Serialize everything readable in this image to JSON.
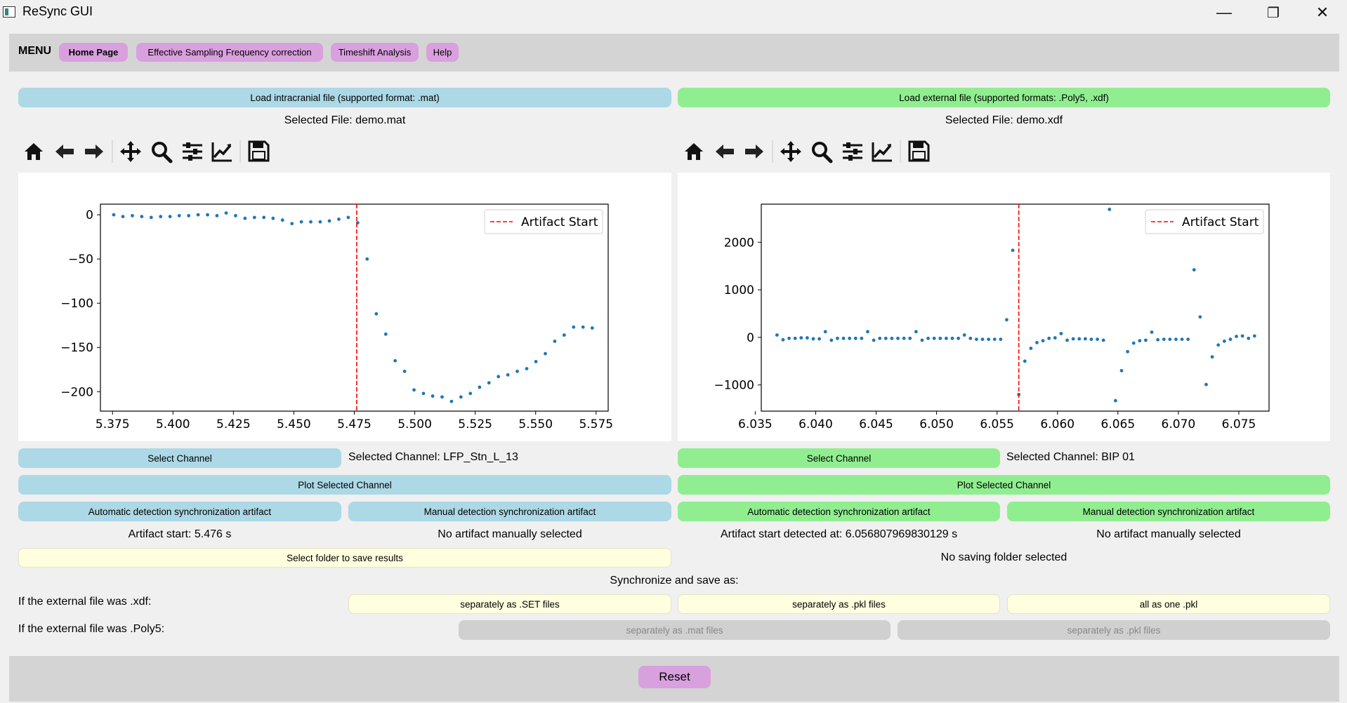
{
  "window": {
    "title": "ReSync GUI",
    "minimize_icon": "—",
    "maximize_icon": "❐",
    "close_icon": "✕"
  },
  "menu": {
    "label": "MENU",
    "items": [
      {
        "label": "Home Page",
        "active": true
      },
      {
        "label": "Effective Sampling Frequency correction"
      },
      {
        "label": "Timeshift Analysis"
      },
      {
        "label": "Help"
      }
    ],
    "accent_color": "#d9a0de"
  },
  "left": {
    "load_button": "Load intracranial file (supported format: .mat)",
    "selected_file": "Selected File: demo.mat",
    "select_channel_button": "Select Channel",
    "selected_channel": "Selected Channel: LFP_Stn_L_13",
    "plot_button": "Plot Selected Channel",
    "auto_button": "Automatic detection synchronization artifact",
    "manual_button": "Manual detection synchronization artifact",
    "artifact_status": "Artifact start: 5.476 s",
    "manual_status": "No artifact manually selected",
    "color": "#add8e6"
  },
  "right": {
    "load_button": "Load external file (supported formats: .Poly5, .xdf)",
    "selected_file": "Selected File: demo.xdf",
    "select_channel_button": "Select Channel",
    "selected_channel": "Selected Channel: BIP 01",
    "plot_button": "Plot Selected Channel",
    "auto_button": "Automatic detection synchronization artifact",
    "manual_button": "Manual detection synchronization artifact",
    "artifact_status": "Artifact start detected at: 6.056807969830129 s",
    "manual_status": "No artifact manually selected",
    "color": "#90ee90"
  },
  "toolbar_icons": [
    "home-icon",
    "back-arrow-icon",
    "forward-arrow-icon",
    "pan-icon",
    "zoom-icon",
    "configure-subplots-icon",
    "edit-axis-icon",
    "save-icon"
  ],
  "save": {
    "folder_button": "Select folder to save results",
    "folder_status": "No saving folder selected",
    "heading": "Synchronize and save as:",
    "xdf_label": "If the external file was .xdf:",
    "xdf_buttons": [
      "separately as .SET files",
      "separately as .pkl files",
      "all as one .pkl"
    ],
    "poly5_label": "If the external file was .Poly5:",
    "poly5_buttons": [
      "separately as .mat files",
      "separately as .pkl files"
    ]
  },
  "reset_button": "Reset",
  "chart_data": [
    {
      "type": "scatter",
      "title": "",
      "xlabel": "",
      "ylabel": "",
      "xlim": [
        5.37,
        5.58
      ],
      "ylim": [
        -222,
        12
      ],
      "xticks": [
        5.375,
        5.4,
        5.425,
        5.45,
        5.475,
        5.5,
        5.525,
        5.55,
        5.575
      ],
      "xtick_labels": [
        "5.375",
        "5.400",
        "5.425",
        "5.450",
        "5.475",
        "5.500",
        "5.525",
        "5.550",
        "5.575"
      ],
      "yticks": [
        0,
        -50,
        -100,
        -150,
        -200
      ],
      "ytick_labels": [
        "0",
        "−50",
        "−100",
        "−150",
        "−200"
      ],
      "series": [
        {
          "color": "#1f77b4",
          "x": [
            5.3755,
            5.3793,
            5.3832,
            5.3871,
            5.391,
            5.3949,
            5.3988,
            5.4026,
            5.4065,
            5.4104,
            5.4143,
            5.4182,
            5.422,
            5.4259,
            5.4298,
            5.4337,
            5.4376,
            5.4414,
            5.4453,
            5.4492,
            5.4531,
            5.457,
            5.4609,
            5.4647,
            5.4686,
            5.4725,
            5.4764,
            5.4803,
            5.4841,
            5.488,
            5.4919,
            5.4958,
            5.4997,
            5.5036,
            5.5074,
            5.5113,
            5.5152,
            5.5191,
            5.523,
            5.5268,
            5.5307,
            5.5346,
            5.5385,
            5.5424,
            5.5463,
            5.5501,
            5.554,
            5.5579,
            5.5618,
            5.5657,
            5.5696,
            5.5734
          ],
          "y": [
            0,
            -2,
            -1,
            -2,
            -3,
            -2,
            -2,
            -1,
            -1,
            0,
            0,
            -1,
            2,
            -1,
            -4,
            -3,
            -3,
            -4,
            -6,
            -10,
            -8,
            -8,
            -8,
            -7,
            -5,
            -3,
            -9,
            -50,
            -112,
            -135,
            -165,
            -177,
            -198,
            -202,
            -205,
            -206,
            -211,
            -206,
            -202,
            -195,
            -190,
            -183,
            -181,
            -177,
            -174,
            -166,
            -157,
            -143,
            -136,
            -127,
            -127,
            -128
          ]
        }
      ],
      "vline": {
        "x": 5.476,
        "color": "#ff0000",
        "style": "dashed"
      },
      "legend": {
        "entries": [
          "Artifact Start"
        ],
        "position": "top-right"
      }
    },
    {
      "type": "scatter",
      "title": "",
      "xlabel": "",
      "ylabel": "",
      "xlim": [
        6.0355,
        6.0775
      ],
      "ylim": [
        -1550,
        2800
      ],
      "xticks": [
        6.035,
        6.04,
        6.045,
        6.05,
        6.055,
        6.06,
        6.065,
        6.07,
        6.075
      ],
      "xtick_labels": [
        "6.035",
        "6.040",
        "6.045",
        "6.050",
        "6.055",
        "6.060",
        "6.065",
        "6.070",
        "6.075"
      ],
      "yticks": [
        2000,
        1000,
        0,
        -1000
      ],
      "ytick_labels": [
        "2000",
        "1000",
        "0",
        "−1000"
      ],
      "series": [
        {
          "color": "#1f77b4",
          "x": [
            6.0368,
            6.0373,
            6.0378,
            6.0383,
            6.0388,
            6.0393,
            6.0398,
            6.0403,
            6.0408,
            6.0413,
            6.0418,
            6.0423,
            6.0428,
            6.0433,
            6.0438,
            6.0443,
            6.0448,
            6.0453,
            6.0458,
            6.0463,
            6.0468,
            6.0473,
            6.0478,
            6.0483,
            6.0488,
            6.0493,
            6.0498,
            6.0503,
            6.0508,
            6.0513,
            6.0518,
            6.0523,
            6.0528,
            6.0533,
            6.0538,
            6.0543,
            6.0548,
            6.0553,
            6.0558,
            6.0563,
            6.0568,
            6.0573,
            6.0578,
            6.0583,
            6.0588,
            6.0593,
            6.0598,
            6.0603,
            6.0608,
            6.0613,
            6.0618,
            6.0623,
            6.0628,
            6.0633,
            6.0638,
            6.0643,
            6.0648,
            6.0653,
            6.0658,
            6.0663,
            6.0668,
            6.0673,
            6.0678,
            6.0683,
            6.0688,
            6.0693,
            6.0698,
            6.0703,
            6.0708,
            6.0713,
            6.0718,
            6.0723,
            6.0728,
            6.0733,
            6.0738,
            6.0743,
            6.0748,
            6.0753,
            6.0758,
            6.0763
          ],
          "y": [
            50,
            -50,
            -20,
            -20,
            -10,
            -10,
            -30,
            -30,
            120,
            -60,
            -20,
            -20,
            -20,
            -20,
            -20,
            120,
            -60,
            -20,
            -20,
            -20,
            -20,
            -20,
            -20,
            120,
            -60,
            -20,
            -20,
            -20,
            -20,
            -20,
            -20,
            50,
            -20,
            -40,
            -40,
            -40,
            -40,
            -40,
            370,
            1830,
            -1200,
            -500,
            -230,
            -110,
            -70,
            -20,
            -10,
            80,
            -60,
            -30,
            -30,
            -30,
            -40,
            -40,
            -60,
            2690,
            -1330,
            -700,
            -300,
            -120,
            -70,
            -60,
            110,
            -50,
            -40,
            -40,
            -40,
            -40,
            -40,
            1420,
            430,
            -990,
            -410,
            -160,
            -80,
            -40,
            20,
            30,
            -20,
            30
          ]
        }
      ],
      "vline": {
        "x": 6.0568,
        "color": "#ff0000",
        "style": "dashed"
      },
      "legend": {
        "entries": [
          "Artifact Start"
        ],
        "position": "top-right"
      }
    }
  ]
}
